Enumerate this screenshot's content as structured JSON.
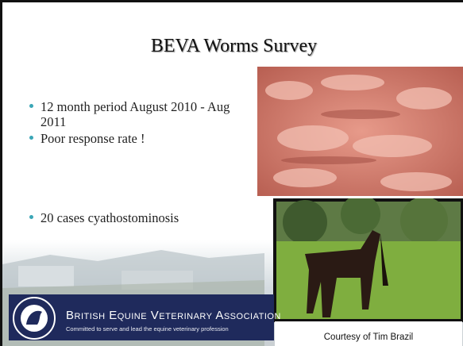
{
  "slide": {
    "title": "BEVA Worms Survey",
    "bullets": [
      "12 month period August 2010 - Aug 2011",
      "Poor response rate !",
      "20 cases cyathostominosis"
    ],
    "logo": {
      "name": "British Equine Veterinary Association",
      "tagline": "Committed to serve and lead the equine veterinary profession"
    },
    "caption": "Courtesy of Tim Brazil"
  }
}
